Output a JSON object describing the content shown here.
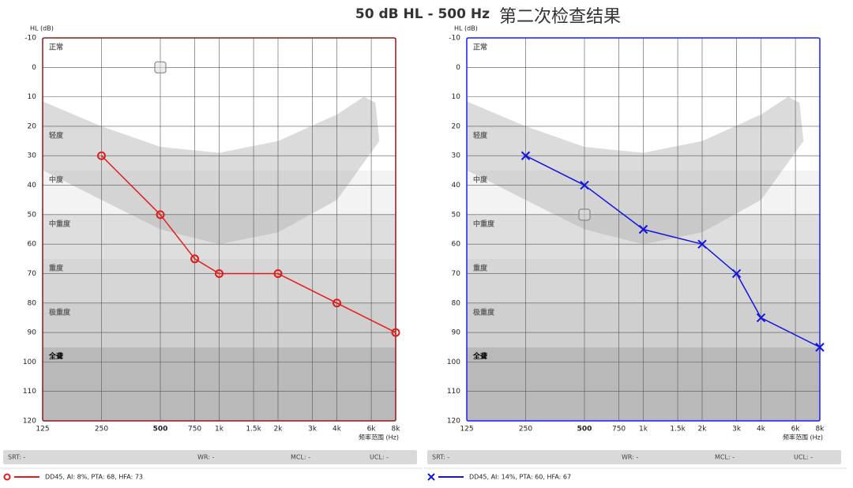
{
  "header": {
    "title": "50 dB HL  -  500 Hz",
    "subtitle": "第二次检查结果"
  },
  "chart_data": [
    {
      "type": "line",
      "x_label": "频率范围 (Hz)",
      "y_label": "HL (dB)",
      "xlim": [
        125,
        8000
      ],
      "xlog": true,
      "ylim": [
        -10,
        120
      ],
      "y_inverted": true,
      "grid": true,
      "frame_color": "#8b1a1a",
      "emphasized_xtick": 500,
      "xticks": [
        125,
        250,
        500,
        750,
        {
          "value": 1000,
          "label": "1k"
        },
        {
          "value": 1500,
          "label": "1.5k"
        },
        {
          "value": 2000,
          "label": "2k"
        },
        {
          "value": 3000,
          "label": "3k"
        },
        {
          "value": 4000,
          "label": "4k"
        },
        {
          "value": 6000,
          "label": "6k"
        },
        {
          "value": 8000,
          "label": "8k"
        }
      ],
      "yticks": [
        -10,
        0,
        10,
        20,
        30,
        40,
        50,
        60,
        70,
        80,
        90,
        100,
        110,
        120
      ],
      "bands": [
        {
          "label": "正常",
          "from": -10,
          "to": 20,
          "color": "#ffffff"
        },
        {
          "label": "轻度",
          "from": 20,
          "to": 35,
          "color": "#ffffff"
        },
        {
          "label": "中度",
          "from": 35,
          "to": 50,
          "color": "#f3f3f3"
        },
        {
          "label": "中重度",
          "from": 50,
          "to": 65,
          "color": "#dedede"
        },
        {
          "label": "重度",
          "from": 65,
          "to": 80,
          "color": "#d6d6d6"
        },
        {
          "label": "极重度",
          "from": 80,
          "to": 95,
          "color": "#cfcfcf"
        },
        {
          "label": "全聋",
          "from": 95,
          "to": 120,
          "color": "#b9b9b9"
        }
      ],
      "cursor": {
        "x": 500,
        "y": 0
      },
      "status": [
        "SRT: -",
        "WR: -",
        "MCL: -",
        "UCL: -"
      ],
      "series": [
        {
          "name": "DD45, AI: 8%, PTA: 68, HFA: 73",
          "color": "#e31b1b",
          "marker": "circle",
          "x": [
            250,
            500,
            750,
            1000,
            2000,
            4000,
            8000
          ],
          "values": [
            30,
            50,
            65,
            70,
            70,
            80,
            90
          ]
        }
      ]
    },
    {
      "type": "line",
      "x_label": "频率范围 (Hz)",
      "y_label": "HL (dB)",
      "xlim": [
        125,
        8000
      ],
      "xlog": true,
      "ylim": [
        -10,
        120
      ],
      "y_inverted": true,
      "grid": true,
      "frame_color": "#1a1aff",
      "emphasized_xtick": 500,
      "xticks": [
        125,
        250,
        500,
        750,
        {
          "value": 1000,
          "label": "1k"
        },
        {
          "value": 1500,
          "label": "1.5k"
        },
        {
          "value": 2000,
          "label": "2k"
        },
        {
          "value": 3000,
          "label": "3k"
        },
        {
          "value": 4000,
          "label": "4k"
        },
        {
          "value": 6000,
          "label": "6k"
        },
        {
          "value": 8000,
          "label": "8k"
        }
      ],
      "yticks": [
        -10,
        0,
        10,
        20,
        30,
        40,
        50,
        60,
        70,
        80,
        90,
        100,
        110,
        120
      ],
      "bands": [
        {
          "label": "正常",
          "from": -10,
          "to": 20,
          "color": "#ffffff"
        },
        {
          "label": "轻度",
          "from": 20,
          "to": 35,
          "color": "#ffffff"
        },
        {
          "label": "中度",
          "from": 35,
          "to": 50,
          "color": "#f3f3f3"
        },
        {
          "label": "中重度",
          "from": 50,
          "to": 65,
          "color": "#dedede"
        },
        {
          "label": "重度",
          "from": 65,
          "to": 80,
          "color": "#d6d6d6"
        },
        {
          "label": "极重度",
          "from": 80,
          "to": 95,
          "color": "#cfcfcf"
        },
        {
          "label": "全聋",
          "from": 95,
          "to": 120,
          "color": "#b9b9b9"
        }
      ],
      "cursor": {
        "x": 500,
        "y": 50
      },
      "status": [
        "SRT: -",
        "WR: -",
        "MCL: -",
        "UCL: -"
      ],
      "series": [
        {
          "name": "DD45, AI: 14%, PTA: 60, HFA: 67",
          "color": "#1515e0",
          "marker": "cross",
          "x": [
            250,
            500,
            1000,
            2000,
            3000,
            4000,
            8000
          ],
          "values": [
            30,
            40,
            55,
            60,
            70,
            85,
            95
          ]
        }
      ]
    }
  ]
}
